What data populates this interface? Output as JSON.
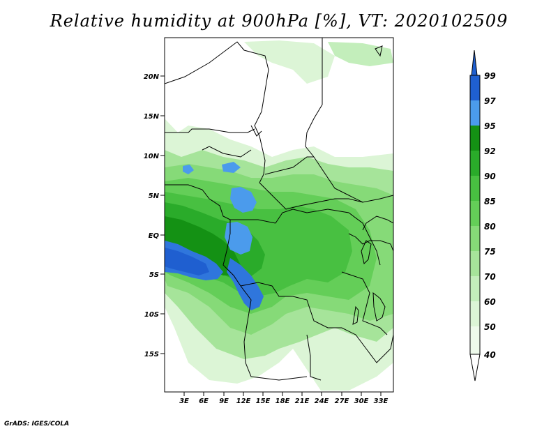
{
  "title": "Relative humidity at 900hPa [%], VT: 2020102509",
  "footer": "GrADS: IGES/COLA",
  "map": {
    "region": "Central Africa",
    "lat_ticks": [
      "20N",
      "15N",
      "10N",
      "5N",
      "EQ",
      "5S",
      "10S",
      "15S"
    ],
    "lon_ticks": [
      "3E",
      "6E",
      "9E",
      "12E",
      "15E",
      "18E",
      "21E",
      "24E",
      "27E",
      "30E",
      "33E"
    ],
    "fill_colors": {
      "light": "#d9f5d2",
      "green_light": "#b4eba8",
      "green_mid": "#8fdf80",
      "green": "#5fcf52",
      "green_dark": "#33b534",
      "green_deep": "#1a9a1f",
      "blue_light": "#4f9ae8",
      "blue": "#2a6fd8"
    }
  },
  "colorbar": {
    "levels": [
      "99",
      "97",
      "95",
      "92",
      "90",
      "85",
      "80",
      "75",
      "70",
      "60",
      "50",
      "40"
    ],
    "colors": [
      "#1f5fd0",
      "#2f76dc",
      "#4b9bec",
      "#149114",
      "#2aab2a",
      "#48c041",
      "#64ce58",
      "#86da78",
      "#a6e49a",
      "#c3eebb",
      "#dcf5d6",
      "#eefaeb",
      "#ffffff"
    ]
  }
}
